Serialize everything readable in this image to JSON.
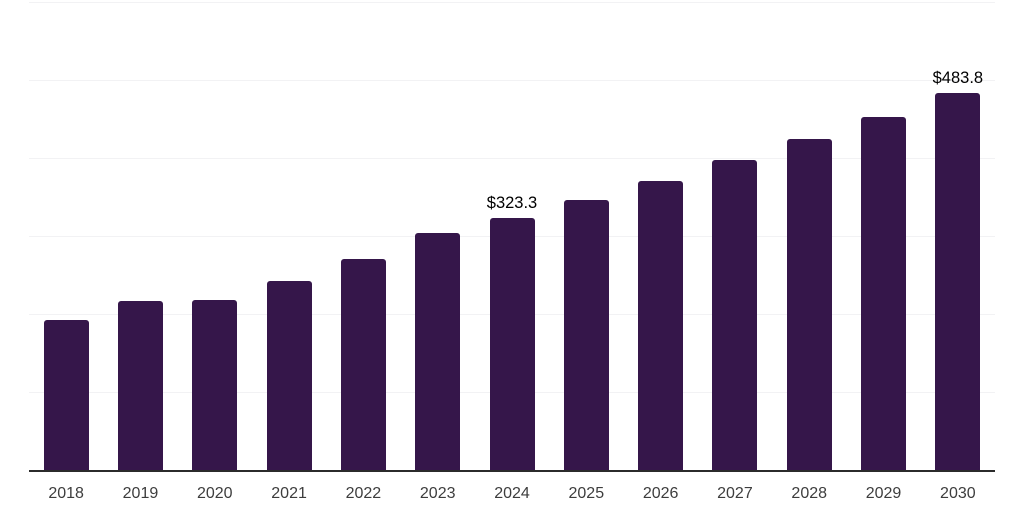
{
  "chart_data": {
    "type": "bar",
    "categories": [
      "2018",
      "2019",
      "2020",
      "2021",
      "2022",
      "2023",
      "2024",
      "2025",
      "2026",
      "2027",
      "2028",
      "2029",
      "2030"
    ],
    "values": [
      192,
      216.5,
      218,
      242,
      270,
      303.5,
      323.3,
      346,
      370,
      397,
      424,
      453,
      483.8
    ],
    "labeled_points": [
      {
        "category": "2024",
        "label": "$323.3"
      },
      {
        "category": "2030",
        "label": "$483.8"
      }
    ],
    "ylim": [
      0,
      600
    ],
    "gridline_step": 100,
    "grid": "horizontal",
    "legend": "none",
    "colors": {
      "bar": "#35164a",
      "gridline": "#f2f2f4",
      "axis_line": "#2b2b2b",
      "tick_label": "#3d3d3d",
      "value_label": "#000000",
      "background": "#ffffff"
    }
  }
}
